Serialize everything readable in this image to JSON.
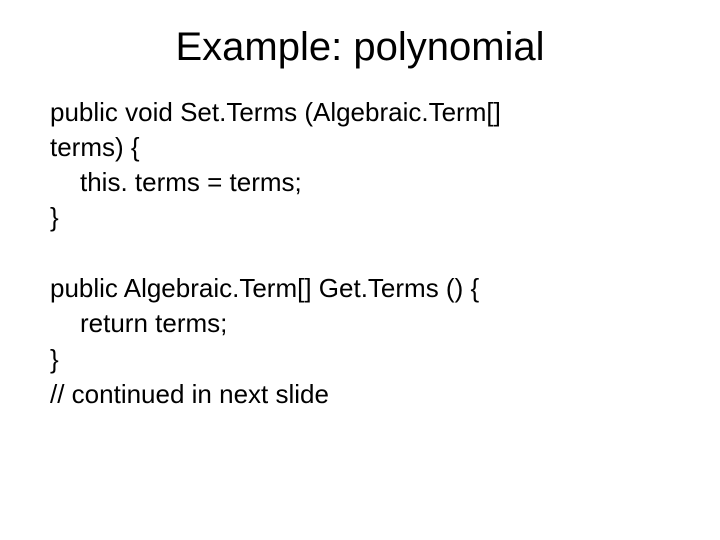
{
  "title": "Example: polynomial",
  "code": {
    "line1": "public void Set.Terms (Algebraic.Term[]",
    "line2": "terms) {",
    "line3": "this. terms = terms;",
    "line4": "}",
    "line5": "public Algebraic.Term[] Get.Terms () {",
    "line6": "return terms;",
    "line7": "}",
    "line8": "// continued in next slide"
  },
  "styling": {
    "background_color": "#ffffff",
    "text_color": "#000000",
    "title_fontsize": 40,
    "code_fontsize": 26,
    "font_family": "Arial"
  }
}
